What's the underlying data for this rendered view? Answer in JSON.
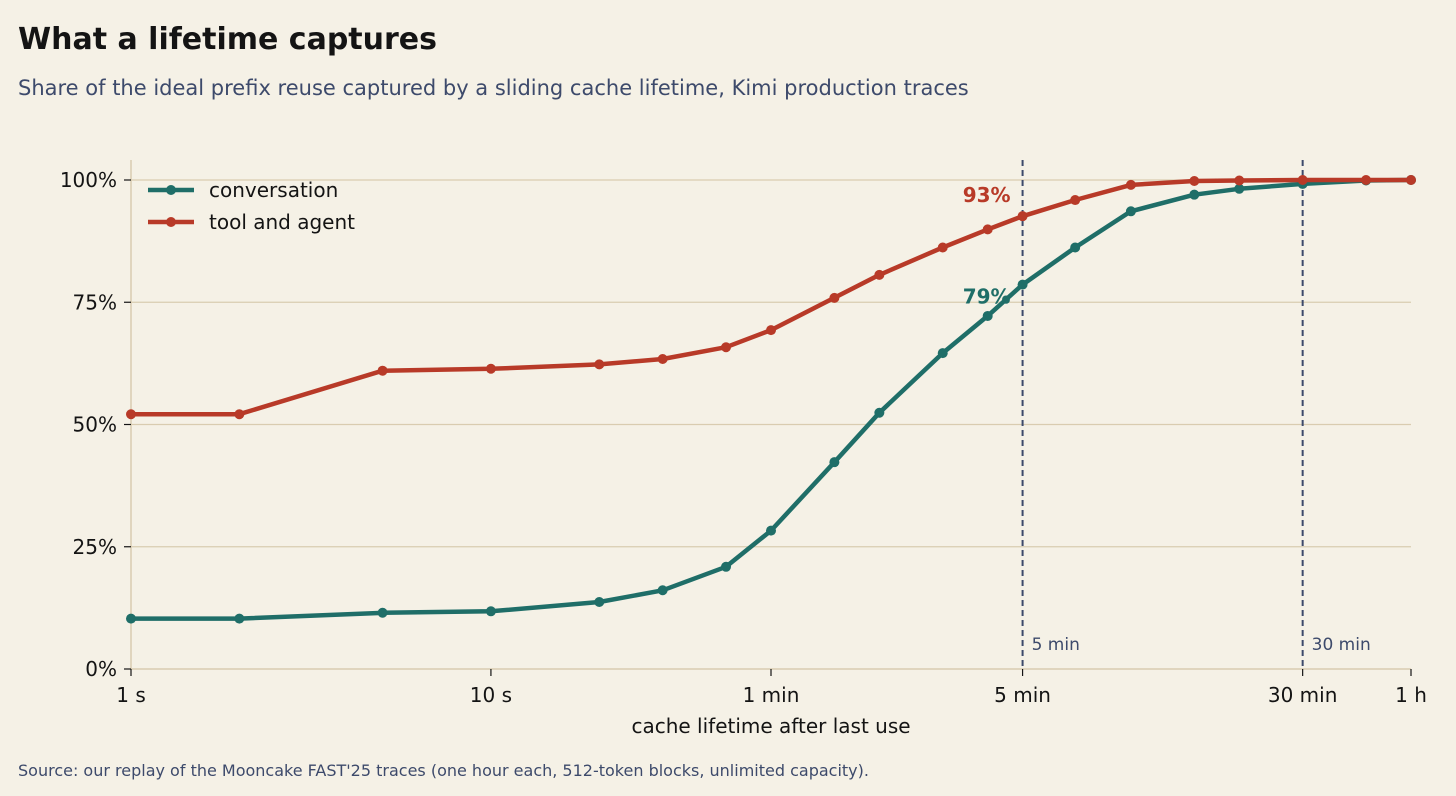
{
  "header": {
    "title": "What a lifetime captures",
    "subtitle": "Share of the ideal prefix reuse captured by a sliding cache lifetime, Kimi production traces"
  },
  "footer": {
    "source": "Source: our replay of the Mooncake FAST'25 traces (one hour each, 512-token blocks, unlimited capacity)."
  },
  "colors": {
    "conversation": "#1f6e68",
    "tool_and_agent": "#b83a28",
    "grid": "#d9ccb0",
    "reference_line": "#3d4a6b",
    "background": "#f5f1e6"
  },
  "chart_data": {
    "type": "line",
    "title": "What a lifetime captures",
    "xlabel": "cache lifetime after last use",
    "ylabel": "",
    "x_scale": "log",
    "x_unit": "seconds",
    "xlim": [
      1,
      3600
    ],
    "ylim": [
      0,
      100
    ],
    "y_unit": "percent",
    "grid": "horizontal",
    "legend_position": "top-left",
    "xticks": [
      {
        "value": 1,
        "label": "1 s"
      },
      {
        "value": 10,
        "label": "10 s"
      },
      {
        "value": 60,
        "label": "1 min"
      },
      {
        "value": 300,
        "label": "5 min"
      },
      {
        "value": 1800,
        "label": "30 min"
      },
      {
        "value": 3600,
        "label": "1 h"
      }
    ],
    "yticks": [
      {
        "value": 0,
        "label": "0%"
      },
      {
        "value": 25,
        "label": "25%"
      },
      {
        "value": 50,
        "label": "50%"
      },
      {
        "value": 75,
        "label": "75%"
      },
      {
        "value": 100,
        "label": "100%"
      }
    ],
    "x": [
      1,
      2,
      5,
      10,
      20,
      30,
      45,
      60,
      90,
      120,
      180,
      240,
      300,
      420,
      600,
      900,
      1200,
      1800,
      2700,
      3600
    ],
    "series": [
      {
        "name": "conversation",
        "values": [
          10.3,
          10.3,
          11.5,
          11.8,
          13.7,
          16.1,
          20.9,
          28.3,
          42.3,
          52.4,
          64.6,
          72.2,
          78.6,
          86.2,
          93.6,
          97.0,
          98.2,
          99.2,
          99.9,
          100.0
        ]
      },
      {
        "name": "tool and agent",
        "values": [
          52.1,
          52.1,
          61.0,
          61.4,
          62.3,
          63.4,
          65.8,
          69.3,
          75.9,
          80.6,
          86.2,
          89.9,
          92.6,
          95.9,
          99.0,
          99.8,
          99.9,
          100.0,
          100.0,
          100.0
        ]
      }
    ],
    "reference_lines": [
      {
        "value": 300,
        "label": "5 min"
      },
      {
        "value": 1800,
        "label": "30 min"
      }
    ],
    "annotations": [
      {
        "series": "tool and agent",
        "at": 300,
        "text": "93%"
      },
      {
        "series": "conversation",
        "at": 300,
        "text": "79%"
      }
    ]
  }
}
